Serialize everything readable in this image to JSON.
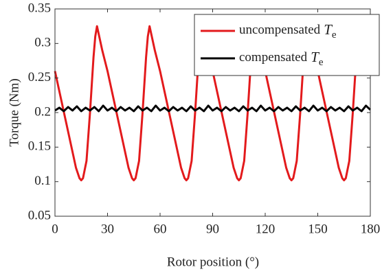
{
  "chart_data": {
    "type": "line",
    "xlabel": "Rotor position (°)",
    "ylabel": "Torque (Nm)",
    "xlim": [
      0,
      180
    ],
    "xticks": [
      0,
      30,
      60,
      90,
      120,
      150,
      180
    ],
    "ylim": [
      0.05,
      0.35
    ],
    "yticks": [
      0.05,
      0.1,
      0.15,
      0.2,
      0.25,
      0.3,
      0.35
    ],
    "grid": false,
    "legend": "upper right",
    "series": [
      {
        "name": "uncompensated",
        "symbol": "T",
        "subscript": "e",
        "color": "#e31a1c",
        "x": [
          0,
          3,
          6,
          9,
          12,
          14,
          15,
          16,
          18,
          20,
          22,
          23,
          24,
          27,
          30,
          33,
          36,
          39,
          42,
          44,
          45,
          46,
          48,
          50,
          52,
          53,
          54,
          57,
          60,
          63,
          66,
          69,
          72,
          74,
          75,
          76,
          78,
          80,
          82,
          83,
          84,
          87,
          90,
          93,
          96,
          99,
          102,
          104,
          105,
          106,
          108,
          110,
          112,
          113,
          114,
          117,
          120,
          123,
          126,
          129,
          132,
          134,
          135,
          136,
          138,
          140,
          142,
          143,
          144,
          147,
          150,
          153,
          156,
          159,
          162,
          164,
          165,
          166,
          168,
          170,
          172,
          173,
          174,
          177,
          180
        ],
        "values": [
          0.26,
          0.225,
          0.19,
          0.155,
          0.12,
          0.105,
          0.102,
          0.105,
          0.13,
          0.2,
          0.28,
          0.31,
          0.325,
          0.29,
          0.26,
          0.225,
          0.19,
          0.155,
          0.12,
          0.105,
          0.102,
          0.105,
          0.13,
          0.2,
          0.28,
          0.31,
          0.325,
          0.29,
          0.26,
          0.225,
          0.19,
          0.155,
          0.12,
          0.105,
          0.102,
          0.105,
          0.13,
          0.2,
          0.28,
          0.31,
          0.325,
          0.29,
          0.26,
          0.225,
          0.19,
          0.155,
          0.12,
          0.105,
          0.102,
          0.105,
          0.13,
          0.2,
          0.28,
          0.31,
          0.325,
          0.29,
          0.26,
          0.225,
          0.19,
          0.155,
          0.12,
          0.105,
          0.102,
          0.105,
          0.13,
          0.2,
          0.28,
          0.31,
          0.325,
          0.29,
          0.26,
          0.225,
          0.19,
          0.155,
          0.12,
          0.105,
          0.102,
          0.105,
          0.13,
          0.2,
          0.28,
          0.31,
          0.325,
          0.29,
          0.26
        ]
      },
      {
        "name": "compensated",
        "symbol": "T",
        "subscript": "e",
        "color": "#000000",
        "x": [
          0,
          2.5,
          5,
          7.5,
          10,
          12.5,
          15,
          17.5,
          20,
          22.5,
          25,
          27.5,
          30,
          32.5,
          35,
          37.5,
          40,
          42.5,
          45,
          47.5,
          50,
          52.5,
          55,
          57.5,
          60,
          62.5,
          65,
          67.5,
          70,
          72.5,
          75,
          77.5,
          80,
          82.5,
          85,
          87.5,
          90,
          92.5,
          95,
          97.5,
          100,
          102.5,
          105,
          107.5,
          110,
          112.5,
          115,
          117.5,
          120,
          122.5,
          125,
          127.5,
          130,
          132.5,
          135,
          137.5,
          140,
          142.5,
          145,
          147.5,
          150,
          152.5,
          155,
          157.5,
          160,
          162.5,
          165,
          167.5,
          170,
          172.5,
          175,
          177.5,
          180
        ],
        "values": [
          0.203,
          0.207,
          0.202,
          0.208,
          0.203,
          0.209,
          0.202,
          0.207,
          0.203,
          0.208,
          0.202,
          0.21,
          0.203,
          0.207,
          0.202,
          0.208,
          0.203,
          0.207,
          0.202,
          0.209,
          0.203,
          0.207,
          0.202,
          0.21,
          0.203,
          0.207,
          0.202,
          0.208,
          0.203,
          0.207,
          0.202,
          0.209,
          0.203,
          0.207,
          0.202,
          0.21,
          0.203,
          0.207,
          0.202,
          0.208,
          0.203,
          0.207,
          0.202,
          0.209,
          0.203,
          0.207,
          0.202,
          0.21,
          0.203,
          0.207,
          0.202,
          0.208,
          0.203,
          0.207,
          0.202,
          0.209,
          0.203,
          0.207,
          0.202,
          0.21,
          0.203,
          0.207,
          0.202,
          0.208,
          0.203,
          0.207,
          0.202,
          0.209,
          0.203,
          0.207,
          0.202,
          0.21,
          0.204
        ]
      }
    ]
  }
}
